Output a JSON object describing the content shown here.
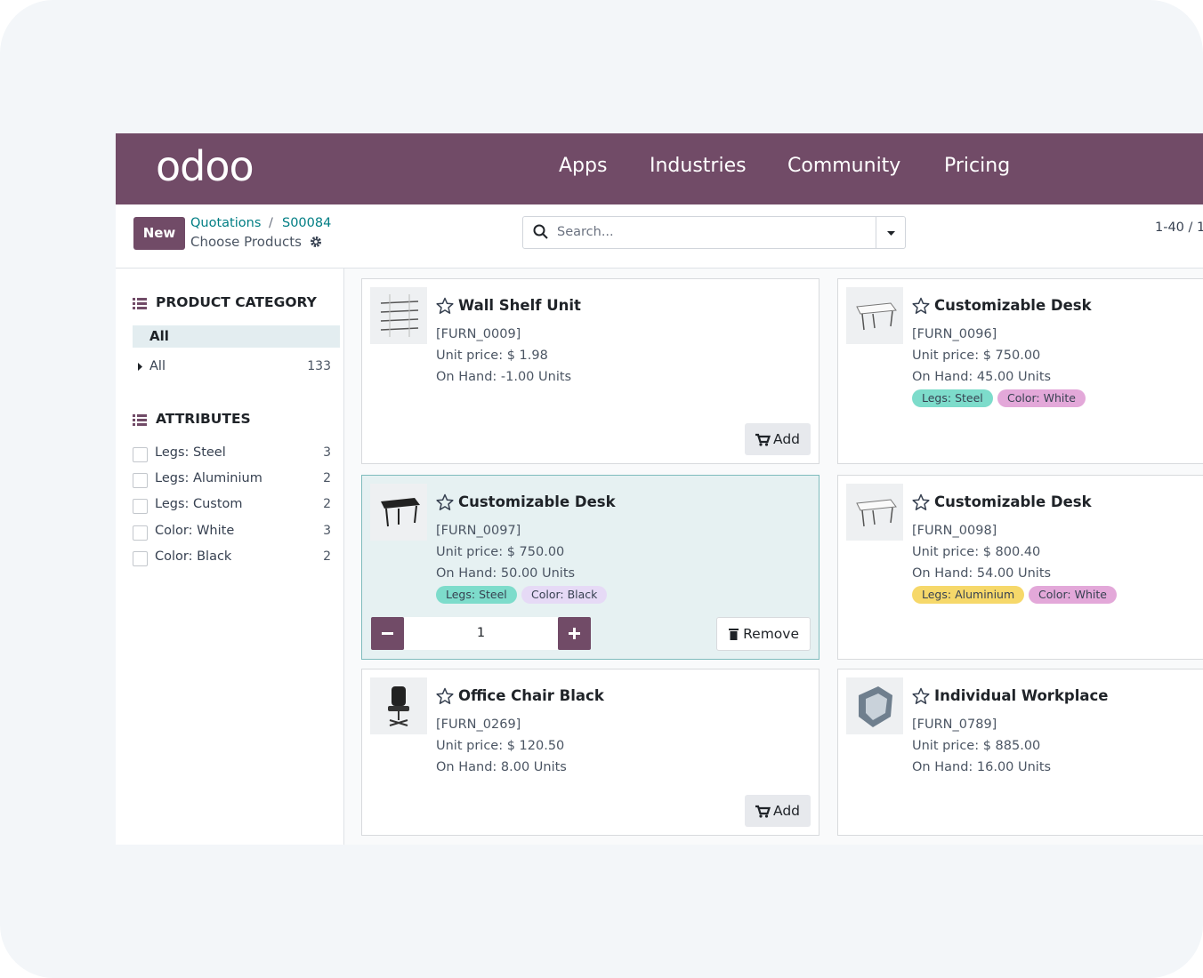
{
  "nav": {
    "logo": "odoo",
    "links": [
      "Apps",
      "Industries",
      "Community",
      "Pricing"
    ]
  },
  "control": {
    "new_button": "New",
    "breadcrumb": "Quotations",
    "separator": "/",
    "record": "S00084",
    "subtitle": "Choose Products",
    "search_placeholder": "Search...",
    "pager": "1-40 / 1"
  },
  "sidebar": {
    "category_title": "PRODUCT CATEGORY",
    "category_selected": "All",
    "categories": [
      {
        "label": "All",
        "count": 133
      }
    ],
    "attributes_title": "ATTRIBUTES",
    "attributes": [
      {
        "label": "Legs: Steel",
        "count": 3
      },
      {
        "label": "Legs: Aluminium",
        "count": 2
      },
      {
        "label": "Legs: Custom",
        "count": 2
      },
      {
        "label": "Color: White",
        "count": 3
      },
      {
        "label": "Color: Black",
        "count": 2
      }
    ]
  },
  "products": [
    {
      "name": "Wall Shelf Unit",
      "code": "[FURN_0009]",
      "price": "Unit price: $ 1.98",
      "on_hand": "On Hand: -1.00 Units",
      "image": "shelf",
      "action": "Add"
    },
    {
      "name": "Customizable Desk",
      "code": "[FURN_0096]",
      "price": "Unit price: $ 750.00",
      "on_hand": "On Hand: 45.00 Units",
      "image": "desk-white",
      "tags": [
        {
          "label": "Legs: Steel",
          "color": "#7ddccb"
        },
        {
          "label": "Color: White",
          "color": "#e3a8d9"
        }
      ]
    },
    {
      "name": "Customizable Desk",
      "code": "[FURN_0097]",
      "price": "Unit price: $ 750.00",
      "on_hand": "On Hand: 50.00 Units",
      "image": "desk-black",
      "selected": true,
      "quantity": 1,
      "action": "Remove",
      "tags": [
        {
          "label": "Legs: Steel",
          "color": "#7ddccb"
        },
        {
          "label": "Color: Black",
          "color": "#e6daf6"
        }
      ]
    },
    {
      "name": "Customizable Desk",
      "code": "[FURN_0098]",
      "price": "Unit price: $ 800.40",
      "on_hand": "On Hand: 54.00 Units",
      "image": "desk-white",
      "tags": [
        {
          "label": "Legs: Aluminium",
          "color": "#f6d86a"
        },
        {
          "label": "Color: White",
          "color": "#e3a8d9"
        }
      ]
    },
    {
      "name": "Office Chair Black",
      "code": "[FURN_0269]",
      "price": "Unit price: $ 120.50",
      "on_hand": "On Hand: 8.00 Units",
      "image": "chair",
      "action": "Add"
    },
    {
      "name": "Individual Workplace",
      "code": "[FURN_0789]",
      "price": "Unit price: $ 885.00",
      "on_hand": "On Hand: 16.00 Units",
      "image": "booth"
    }
  ]
}
